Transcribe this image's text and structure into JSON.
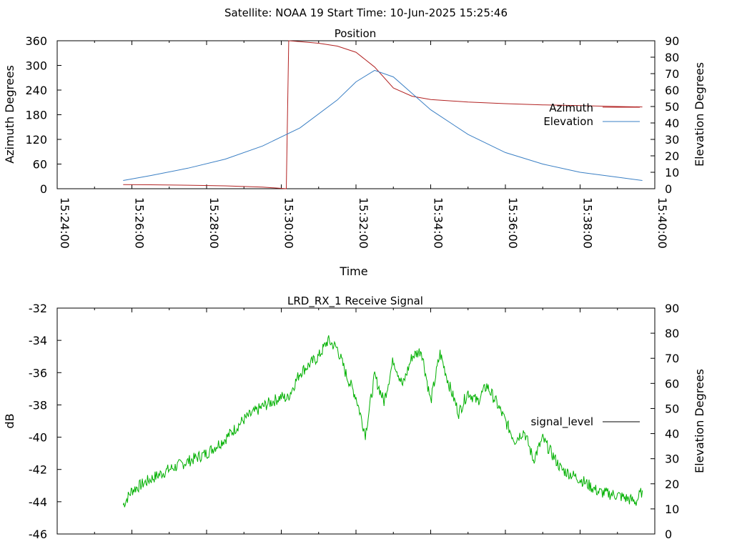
{
  "header": {
    "title": "Satellite: NOAA 19    Start Time: 10-Jun-2025 15:25:46"
  },
  "colors": {
    "azimuth": "#b22222",
    "elevation": "#3a7fc4",
    "signal": "#00b000",
    "axis": "#000000"
  },
  "chart_data": [
    {
      "type": "line",
      "title": "Position",
      "xlabel": "Time",
      "ylabel_left": "Azimuth Degrees",
      "ylabel_right": "Elevation Degrees",
      "x_ticks": [
        "15:24:00",
        "15:26:00",
        "15:28:00",
        "15:30:00",
        "15:32:00",
        "15:34:00",
        "15:36:00",
        "15:38:00",
        "15:40:00"
      ],
      "y_left_ticks": [
        "0",
        "60",
        "120",
        "180",
        "240",
        "300",
        "360"
      ],
      "y_right_ticks": [
        "0",
        "10",
        "20",
        "30",
        "40",
        "50",
        "60",
        "70",
        "80",
        "90"
      ],
      "xlim": [
        "15:24:00",
        "15:40:00"
      ],
      "ylim_left": [
        0,
        360
      ],
      "ylim_right": [
        0,
        90
      ],
      "legend_position": "right",
      "series": [
        {
          "name": "Azimuth",
          "axis": "left",
          "x": [
            "15:25:46",
            "15:26:30",
            "15:27:30",
            "15:28:30",
            "15:29:30",
            "15:30:08",
            "15:30:12",
            "15:30:30",
            "15:31:00",
            "15:31:30",
            "15:32:00",
            "15:32:30",
            "15:33:00",
            "15:33:30",
            "15:34:00",
            "15:35:00",
            "15:36:00",
            "15:37:00",
            "15:38:00",
            "15:39:00",
            "15:39:40"
          ],
          "y": [
            10,
            9.5,
            8.5,
            7,
            4,
            0,
            360,
            358,
            354,
            347,
            332,
            296,
            245,
            225,
            217,
            211,
            207,
            204,
            202,
            200,
            199
          ]
        },
        {
          "name": "Elevation",
          "axis": "right",
          "x": [
            "15:25:46",
            "15:26:30",
            "15:27:30",
            "15:28:30",
            "15:29:30",
            "15:30:30",
            "15:31:30",
            "15:32:00",
            "15:32:30",
            "15:33:00",
            "15:33:30",
            "15:34:00",
            "15:35:00",
            "15:36:00",
            "15:37:00",
            "15:38:00",
            "15:39:00",
            "15:39:40"
          ],
          "y": [
            5,
            8,
            12.5,
            18,
            26,
            37,
            54,
            65,
            72,
            68,
            58,
            48,
            33,
            22,
            15,
            10,
            7,
            5
          ]
        }
      ]
    },
    {
      "type": "line",
      "title": "LRD_RX_1 Receive Signal",
      "ylabel_left": "dB",
      "ylabel_right": "Elevation Degrees",
      "y_left_ticks": [
        "-46",
        "-44",
        "-42",
        "-40",
        "-38",
        "-36",
        "-34",
        "-32"
      ],
      "y_right_ticks": [
        "0",
        "10",
        "20",
        "30",
        "40",
        "50",
        "60",
        "70",
        "80",
        "90"
      ],
      "xlim": [
        "15:24:00",
        "15:40:00"
      ],
      "ylim_left": [
        -46,
        -32
      ],
      "ylim_right": [
        0,
        90
      ],
      "legend_position": "right",
      "series": [
        {
          "name": "signal_level",
          "axis": "left",
          "x": [
            "15:25:46",
            "15:26:00",
            "15:26:30",
            "15:27:00",
            "15:27:30",
            "15:28:00",
            "15:28:30",
            "15:29:00",
            "15:29:30",
            "15:30:00",
            "15:30:10",
            "15:30:30",
            "15:31:00",
            "15:31:15",
            "15:31:30",
            "15:31:45",
            "15:32:00",
            "15:32:15",
            "15:32:30",
            "15:32:45",
            "15:33:00",
            "15:33:15",
            "15:33:30",
            "15:33:45",
            "15:34:00",
            "15:34:15",
            "15:34:30",
            "15:34:45",
            "15:35:00",
            "15:35:15",
            "15:35:30",
            "15:35:45",
            "15:36:00",
            "15:36:15",
            "15:36:30",
            "15:36:45",
            "15:37:00",
            "15:37:30",
            "15:38:00",
            "15:38:30",
            "15:39:00",
            "15:39:30",
            "15:39:40"
          ],
          "y": [
            -44.2,
            -43.3,
            -42.6,
            -42.0,
            -41.5,
            -41.0,
            -40.1,
            -38.9,
            -38.1,
            -37.5,
            -37.6,
            -36.0,
            -35.0,
            -34.0,
            -34.5,
            -36.2,
            -37.5,
            -39.8,
            -36.2,
            -37.8,
            -35.2,
            -36.8,
            -35.0,
            -34.6,
            -37.8,
            -34.8,
            -36.8,
            -38.5,
            -37.2,
            -37.8,
            -36.8,
            -37.8,
            -39.0,
            -40.2,
            -39.6,
            -41.4,
            -40.1,
            -42.0,
            -42.6,
            -43.4,
            -43.6,
            -44.0,
            -43.3
          ]
        }
      ]
    }
  ]
}
